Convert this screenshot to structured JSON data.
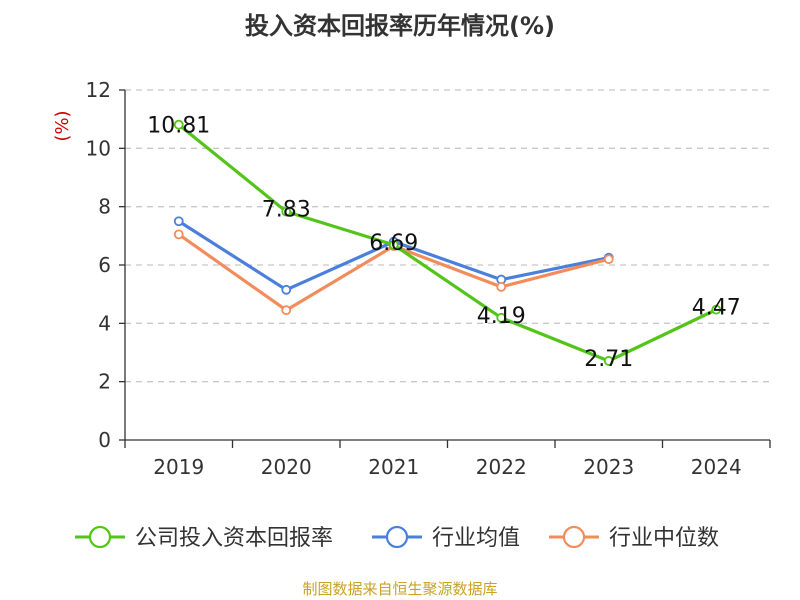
{
  "chart_data": {
    "type": "line",
    "title": "投入资本回报率历年情况(%)",
    "ylabel": "(%)",
    "xlabel": "",
    "categories": [
      "2019",
      "2020",
      "2021",
      "2022",
      "2023",
      "2024"
    ],
    "ylim": [
      0,
      12
    ],
    "yticks": [
      0,
      2,
      4,
      6,
      8,
      10,
      12
    ],
    "grid": true,
    "legend_position": "bottom",
    "series": [
      {
        "name": "公司投入资本回报率",
        "color": "#52c41a",
        "values": [
          10.81,
          7.83,
          6.69,
          4.19,
          2.71,
          4.47
        ],
        "show_labels": true
      },
      {
        "name": "行业均值",
        "color": "#4a7fdb",
        "values": [
          7.5,
          5.15,
          6.8,
          5.5,
          6.25,
          null
        ],
        "show_labels": false
      },
      {
        "name": "行业中位数",
        "color": "#f28c5a",
        "values": [
          7.05,
          4.45,
          6.65,
          5.25,
          6.2,
          null
        ],
        "show_labels": false
      }
    ],
    "data_labels": [
      "10.81",
      "7.83",
      "6.69",
      "4.19",
      "2.71",
      "4.47"
    ],
    "source": "制图数据来自恒生聚源数据库"
  },
  "colors": {
    "grid": "#c8c8c8",
    "axis": "#333333",
    "ylabel": "#d40000",
    "source": "#c9a227"
  }
}
